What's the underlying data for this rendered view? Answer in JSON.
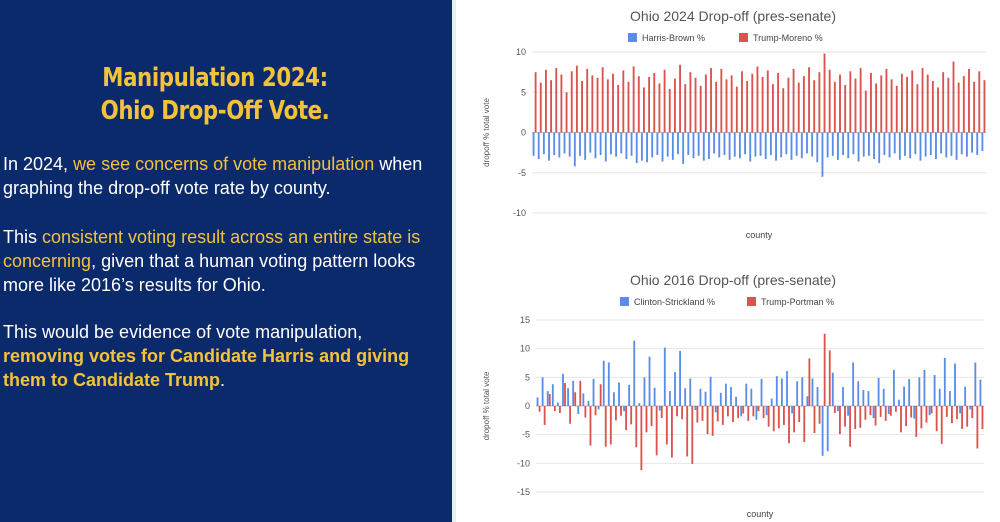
{
  "slide": {
    "title_line1": "Manipulation 2024:",
    "title_line2": "Ohio Drop-Off Vote.",
    "p1": {
      "a": "In 2024, ",
      "b": "we see concerns of vote manipulation",
      "c": " when graphing the drop-off vote rate by county."
    },
    "p2": {
      "a": "This ",
      "b": "consistent voting result across an entire state is concerning",
      "c": ", given that a human voting pattern looks more like 2016’s results for Ohio."
    },
    "p3": {
      "a": "This would be evidence of vote manipulation, ",
      "b": "removing votes for Candidate Harris and giving them to Candidate Trump",
      "c": "."
    }
  },
  "colors": {
    "blue": "#5b8de6",
    "red": "#d9534f",
    "panel": "#0b2a6b",
    "accent": "#f2c23b"
  },
  "chart_data": [
    {
      "type": "bar",
      "title": "Ohio 2024 Drop-off (pres-senate)",
      "xlabel": "county",
      "ylabel": "dropoff % total vote",
      "ylim": [
        -10,
        10
      ],
      "yticks": [
        10,
        5,
        0,
        -5,
        -10
      ],
      "legend_position": "top",
      "categories_count": 88,
      "series": [
        {
          "name": "Harris-Brown %",
          "color": "#5b8de6",
          "values": [
            -2.9,
            -3.3,
            -2.7,
            -3.5,
            -2.8,
            -3.1,
            -2.6,
            -3.0,
            -4.2,
            -2.9,
            -3.4,
            -2.5,
            -3.2,
            -2.8,
            -3.6,
            -2.7,
            -3.0,
            -2.6,
            -3.3,
            -2.9,
            -3.8,
            -3.5,
            -3.7,
            -3.1,
            -2.8,
            -3.6,
            -3.0,
            -3.4,
            -2.7,
            -3.9,
            -2.8,
            -3.2,
            -2.9,
            -3.5,
            -3.3,
            -2.6,
            -3.1,
            -2.8,
            -3.4,
            -3.0,
            -3.2,
            -2.7,
            -3.6,
            -3.0,
            -2.9,
            -3.3,
            -2.8,
            -3.5,
            -3.1,
            -2.7,
            -3.4,
            -2.9,
            -3.2,
            -2.6,
            -3.0,
            -3.7,
            -5.5,
            -3.1,
            -2.9,
            -3.4,
            -2.8,
            -3.2,
            -2.7,
            -3.6,
            -3.0,
            -2.9,
            -3.3,
            -3.8,
            -2.8,
            -3.1,
            -2.6,
            -3.4,
            -2.9,
            -3.2,
            -2.7,
            -3.5,
            -3.0,
            -2.8,
            -3.3,
            -2.6,
            -3.1,
            -2.9,
            -3.4,
            -2.7,
            -3.0,
            -2.5,
            -2.8,
            -2.3
          ]
        },
        {
          "name": "Trump-Moreno %",
          "color": "#d9534f",
          "values": [
            7.5,
            6.2,
            7.8,
            6.5,
            8.0,
            7.2,
            5.0,
            7.6,
            8.3,
            6.4,
            7.9,
            7.1,
            6.8,
            8.1,
            6.6,
            7.3,
            5.9,
            7.7,
            6.3,
            8.2,
            7.0,
            5.6,
            6.9,
            7.4,
            6.1,
            7.8,
            5.4,
            6.7,
            8.4,
            6.0,
            7.5,
            6.8,
            5.8,
            7.2,
            8.0,
            6.3,
            7.9,
            6.6,
            7.1,
            5.7,
            7.6,
            6.4,
            7.3,
            8.2,
            6.9,
            7.7,
            6.0,
            7.4,
            5.5,
            6.8,
            7.9,
            6.2,
            7.0,
            8.1,
            6.5,
            7.5,
            9.8,
            7.8,
            6.3,
            7.2,
            5.9,
            7.6,
            6.7,
            8.0,
            5.2,
            7.4,
            6.1,
            7.1,
            7.9,
            6.6,
            5.8,
            7.3,
            6.9,
            7.7,
            6.0,
            8.0,
            7.2,
            6.4,
            5.6,
            7.5,
            6.8,
            8.8,
            6.2,
            7.0,
            7.9,
            6.3,
            7.6,
            6.5
          ]
        }
      ]
    },
    {
      "type": "bar",
      "title": "Ohio 2016 Drop-off (pres-senate)",
      "xlabel": "county",
      "ylabel": "dropoff % total vote",
      "ylim": [
        -15,
        15
      ],
      "yticks": [
        15,
        10,
        5,
        0,
        -5,
        -10,
        -15
      ],
      "legend_position": "top",
      "categories_count": 88,
      "series": [
        {
          "name": "Clinton-Strickland %",
          "color": "#5b8de6",
          "values": [
            1.5,
            5.0,
            2.6,
            3.8,
            0.6,
            5.6,
            3.1,
            4.4,
            -1.4,
            2.2,
            0.9,
            4.7,
            -0.6,
            7.9,
            7.6,
            2.4,
            4.1,
            -0.9,
            3.7,
            11.4,
            0.5,
            5.0,
            8.6,
            3.2,
            -0.8,
            10.2,
            2.6,
            5.9,
            9.6,
            3.1,
            4.8,
            -0.7,
            3.0,
            2.5,
            5.1,
            -1.1,
            2.3,
            3.9,
            3.3,
            1.6,
            -1.8,
            3.9,
            3.0,
            -2.4,
            4.7,
            -1.6,
            1.3,
            5.2,
            4.8,
            6.1,
            -1.3,
            4.3,
            5.0,
            1.7,
            4.8,
            3.3,
            -8.7,
            -7.9,
            5.8,
            -0.9,
            3.3,
            -1.7,
            7.6,
            4.3,
            2.8,
            2.6,
            -2.1,
            4.9,
            3.0,
            -1.4,
            6.3,
            1.1,
            3.4,
            4.7,
            -2.2,
            5.0,
            6.3,
            -1.6,
            5.4,
            3.0,
            8.4,
            2.6,
            7.4,
            -1.3,
            3.4,
            -0.6,
            7.6,
            4.6
          ]
        },
        {
          "name": "Trump-Portman %",
          "color": "#d9534f",
          "values": [
            -1.0,
            -3.3,
            2.1,
            -0.9,
            -1.2,
            4.0,
            -3.1,
            2.4,
            4.4,
            -2.0,
            -6.9,
            -1.6,
            3.8,
            -7.1,
            -6.7,
            -2.5,
            -1.7,
            -4.2,
            -3.2,
            -7.2,
            -11.2,
            -4.6,
            -3.5,
            -8.6,
            -2.1,
            -6.7,
            -9.0,
            -1.8,
            -2.3,
            -8.8,
            -10.1,
            -2.9,
            -2.6,
            -4.9,
            -5.2,
            -2.7,
            -3.3,
            -1.8,
            -2.8,
            -2.1,
            -1.3,
            -2.6,
            -1.8,
            -0.9,
            -2.1,
            -3.6,
            -4.4,
            -3.9,
            -3.3,
            -6.5,
            -4.6,
            -2.8,
            -6.3,
            8.3,
            -4.7,
            -3.1,
            12.6,
            9.7,
            -1.2,
            -4.9,
            -3.6,
            -7.1,
            -4.0,
            -3.8,
            -2.4,
            -1.6,
            -3.4,
            -1.9,
            -2.6,
            -1.7,
            -1.0,
            -4.6,
            -3.5,
            -2.0,
            -5.4,
            -3.9,
            -2.9,
            -1.3,
            -4.4,
            -6.6,
            -1.9,
            -3.0,
            -2.3,
            -4.0,
            -3.6,
            -2.1,
            -7.4,
            -4.0
          ]
        }
      ]
    }
  ]
}
